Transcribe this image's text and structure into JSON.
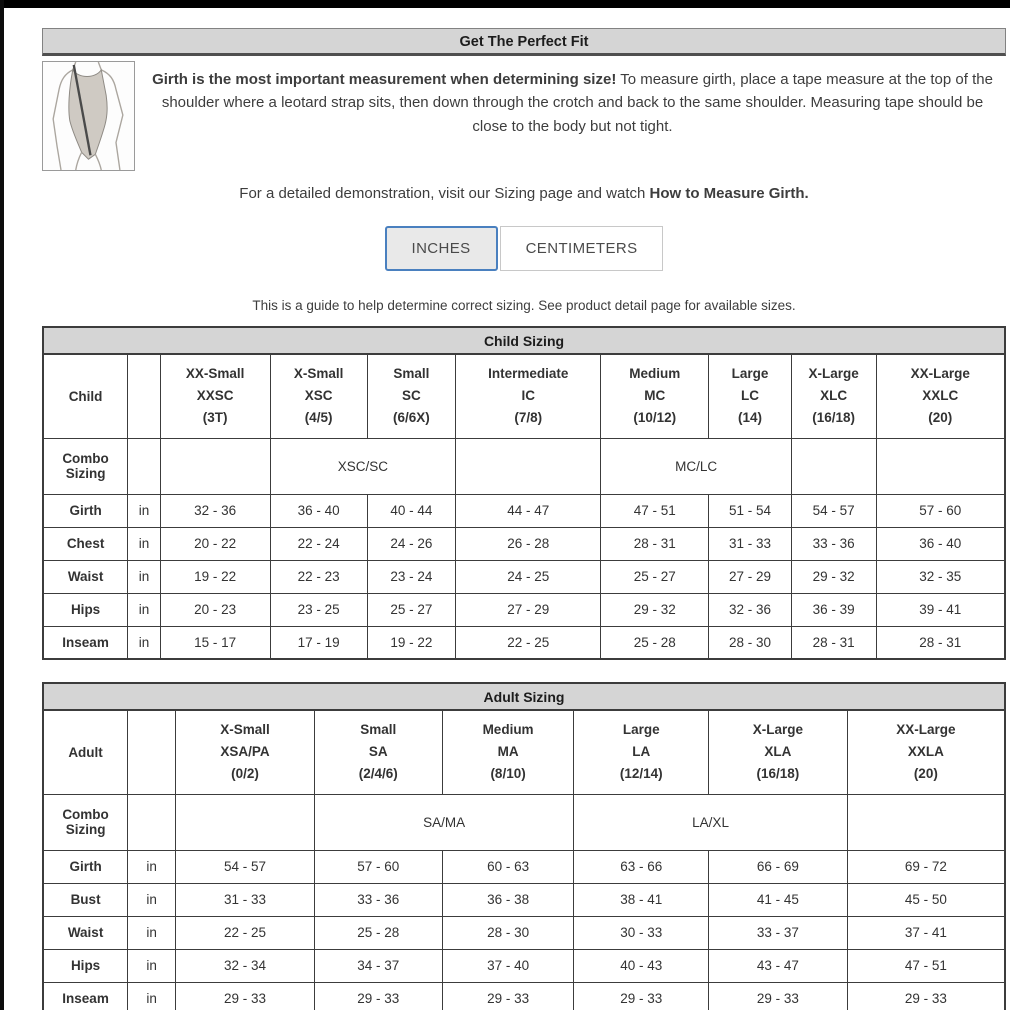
{
  "header": {
    "title": "Get The Perfect Fit"
  },
  "intro": {
    "lead_bold": "Girth is the most important measurement when determining size!",
    "lead_rest": " To measure girth, place a tape measure at the top of the shoulder where a leotard strap sits, then down through the crotch and back to the same shoulder. Measuring tape should be close to the body but not tight.",
    "demo_prefix": "For a detailed demonstration, visit our Sizing page and watch ",
    "demo_bold": "How to Measure Girth."
  },
  "unit_toggle": {
    "inches_label": "INCHES",
    "centimeters_label": "CENTIMETERS",
    "selected": "INCHES"
  },
  "note": "This is a guide to help determine correct sizing. See product detail page for available sizes.",
  "colors": {
    "selected_button_border": "#4a80bf",
    "header_bar_bg": "#d5d5d5",
    "table_border": "#3c3c3c"
  },
  "child_table": {
    "title": "Child Sizing",
    "row_label": "Child",
    "combo_label": "Combo Sizing",
    "unit": "in",
    "columns": [
      {
        "name": "XX-Small",
        "code": "XXSC",
        "size": "(3T)"
      },
      {
        "name": "X-Small",
        "code": "XSC",
        "size": "(4/5)"
      },
      {
        "name": "Small",
        "code": "SC",
        "size": "(6/6X)"
      },
      {
        "name": "Intermediate",
        "code": "IC",
        "size": "(7/8)"
      },
      {
        "name": "Medium",
        "code": "MC",
        "size": "(10/12)"
      },
      {
        "name": "Large",
        "code": "LC",
        "size": "(14)"
      },
      {
        "name": "X-Large",
        "code": "XLC",
        "size": "(16/18)"
      },
      {
        "name": "XX-Large",
        "code": "XXLC",
        "size": "(20)"
      }
    ],
    "combo": [
      {
        "label": "",
        "span": 1
      },
      {
        "label": "XSC/SC",
        "span": 2
      },
      {
        "label": "",
        "span": 1
      },
      {
        "label": "MC/LC",
        "span": 2
      },
      {
        "label": "",
        "span": 1
      },
      {
        "label": "",
        "span": 1
      }
    ],
    "rows": [
      {
        "label": "Girth",
        "values": [
          "32 - 36",
          "36 - 40",
          "40 - 44",
          "44 - 47",
          "47 - 51",
          "51 - 54",
          "54 - 57",
          "57 - 60"
        ]
      },
      {
        "label": "Chest",
        "values": [
          "20 - 22",
          "22 - 24",
          "24 - 26",
          "26 - 28",
          "28 - 31",
          "31 - 33",
          "33 - 36",
          "36 - 40"
        ]
      },
      {
        "label": "Waist",
        "values": [
          "19 - 22",
          "22 - 23",
          "23 - 24",
          "24 - 25",
          "25 - 27",
          "27 - 29",
          "29 - 32",
          "32 - 35"
        ]
      },
      {
        "label": "Hips",
        "values": [
          "20 - 23",
          "23 - 25",
          "25 - 27",
          "27 - 29",
          "29 - 32",
          "32 - 36",
          "36 - 39",
          "39 - 41"
        ]
      },
      {
        "label": "Inseam",
        "values": [
          "15 - 17",
          "17 - 19",
          "19 - 22",
          "22 - 25",
          "25 - 28",
          "28 - 30",
          "28 - 31",
          "28 - 31"
        ]
      }
    ]
  },
  "adult_table": {
    "title": "Adult Sizing",
    "row_label": "Adult",
    "combo_label": "Combo Sizing",
    "unit": "in",
    "columns": [
      {
        "name": "X-Small",
        "code": "XSA/PA",
        "size": "(0/2)"
      },
      {
        "name": "Small",
        "code": "SA",
        "size": "(2/4/6)"
      },
      {
        "name": "Medium",
        "code": "MA",
        "size": "(8/10)"
      },
      {
        "name": "Large",
        "code": "LA",
        "size": "(12/14)"
      },
      {
        "name": "X-Large",
        "code": "XLA",
        "size": "(16/18)"
      },
      {
        "name": "XX-Large",
        "code": "XXLA",
        "size": "(20)"
      }
    ],
    "combo": [
      {
        "label": "",
        "span": 1
      },
      {
        "label": "SA/MA",
        "span": 2
      },
      {
        "label": "LA/XL",
        "span": 2
      },
      {
        "label": "",
        "span": 1
      }
    ],
    "rows": [
      {
        "label": "Girth",
        "values": [
          "54 - 57",
          "57 - 60",
          "60 - 63",
          "63 - 66",
          "66 - 69",
          "69 - 72"
        ]
      },
      {
        "label": "Bust",
        "values": [
          "31 - 33",
          "33 - 36",
          "36 - 38",
          "38 - 41",
          "41 - 45",
          "45 - 50"
        ]
      },
      {
        "label": "Waist",
        "values": [
          "22 - 25",
          "25 - 28",
          "28 - 30",
          "30 - 33",
          "33 - 37",
          "37 - 41"
        ]
      },
      {
        "label": "Hips",
        "values": [
          "32 - 34",
          "34 - 37",
          "37 - 40",
          "40 - 43",
          "43 - 47",
          "47 - 51"
        ]
      },
      {
        "label": "Inseam",
        "values": [
          "29 - 33",
          "29 - 33",
          "29 - 33",
          "29 - 33",
          "29 - 33",
          "29 - 33"
        ]
      }
    ]
  }
}
